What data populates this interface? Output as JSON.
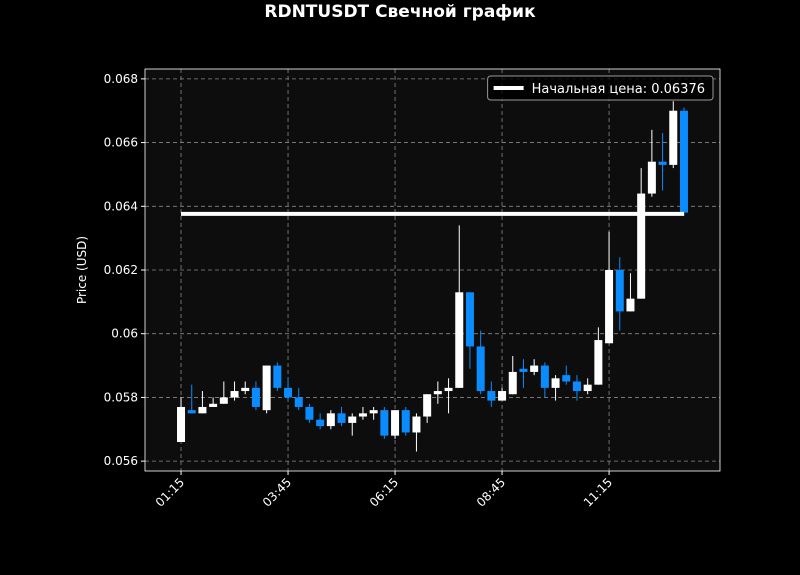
{
  "chart_data": {
    "type": "candlestick",
    "title": "RDNTUSDT Свечной график",
    "ylabel": "Price (USD)",
    "x": [
      75,
      90,
      105,
      120,
      135,
      150,
      165,
      180,
      195,
      210,
      225,
      240,
      255,
      270,
      285,
      300,
      315,
      330,
      345,
      360,
      375,
      390,
      405,
      420,
      435,
      450,
      465,
      480,
      495,
      510,
      525,
      540,
      555,
      570,
      585,
      600,
      615,
      630,
      645,
      660,
      675,
      690,
      705,
      720,
      735,
      750,
      765,
      780
    ],
    "open": [
      0.0566,
      0.0576,
      0.0575,
      0.0577,
      0.0578,
      0.058,
      0.0582,
      0.0583,
      0.0576,
      0.059,
      0.0583,
      0.058,
      0.0577,
      0.0573,
      0.0571,
      0.0575,
      0.0572,
      0.0574,
      0.0575,
      0.0576,
      0.0568,
      0.0576,
      0.0569,
      0.0574,
      0.0581,
      0.0582,
      0.0583,
      0.0613,
      0.0596,
      0.0582,
      0.0579,
      0.0581,
      0.0589,
      0.0588,
      0.059,
      0.0583,
      0.0587,
      0.0585,
      0.0582,
      0.0584,
      0.0597,
      0.062,
      0.0607,
      0.0611,
      0.0644,
      0.0654,
      0.0653,
      0.067
    ],
    "high": [
      0.058,
      0.0584,
      0.0582,
      0.058,
      0.0585,
      0.0585,
      0.0585,
      0.0585,
      0.059,
      0.0591,
      0.0586,
      0.0583,
      0.0578,
      0.0575,
      0.0576,
      0.0577,
      0.0575,
      0.0577,
      0.0577,
      0.0577,
      0.0576,
      0.0577,
      0.0575,
      0.0581,
      0.0585,
      0.0586,
      0.0634,
      0.0613,
      0.0601,
      0.0585,
      0.0583,
      0.0593,
      0.0592,
      0.0592,
      0.0591,
      0.0587,
      0.059,
      0.0587,
      0.0586,
      0.0602,
      0.0632,
      0.0624,
      0.0619,
      0.0652,
      0.0664,
      0.0663,
      0.0673,
      0.0671
    ],
    "low": [
      0.0566,
      0.0575,
      0.0575,
      0.0577,
      0.0578,
      0.0579,
      0.0581,
      0.0576,
      0.0575,
      0.0582,
      0.0579,
      0.0576,
      0.0572,
      0.057,
      0.057,
      0.0571,
      0.0568,
      0.0573,
      0.0573,
      0.0567,
      0.0567,
      0.0568,
      0.0563,
      0.0572,
      0.0578,
      0.0575,
      0.0583,
      0.0589,
      0.0581,
      0.0577,
      0.0579,
      0.0581,
      0.0583,
      0.0587,
      0.058,
      0.0579,
      0.0584,
      0.0579,
      0.0581,
      0.0584,
      0.0597,
      0.0601,
      0.0607,
      0.0611,
      0.0643,
      0.0645,
      0.0652,
      0.0637
    ],
    "close": [
      0.0577,
      0.0575,
      0.0577,
      0.0578,
      0.058,
      0.0582,
      0.0583,
      0.0577,
      0.059,
      0.0583,
      0.058,
      0.0577,
      0.0573,
      0.0571,
      0.0575,
      0.0572,
      0.0574,
      0.0575,
      0.0576,
      0.0568,
      0.0576,
      0.0569,
      0.0574,
      0.0581,
      0.0582,
      0.0583,
      0.0613,
      0.0596,
      0.0582,
      0.0579,
      0.0582,
      0.0588,
      0.0588,
      0.059,
      0.0583,
      0.0586,
      0.0585,
      0.0582,
      0.0584,
      0.0598,
      0.062,
      0.0607,
      0.0611,
      0.0644,
      0.0654,
      0.0653,
      0.067,
      0.0638
    ],
    "up_color": "#ffffff",
    "down_color": "#0a8cff",
    "reference_line": {
      "name": "Начальная цена: 0.06376",
      "value": 0.06376,
      "color": "#ffffff"
    },
    "xlim": [
      24.5,
      830.5
    ],
    "ylim": [
      0.05569,
      0.06831
    ],
    "xticks": [
      {
        "value": 75,
        "label": "01:15"
      },
      {
        "value": 225,
        "label": "03:45"
      },
      {
        "value": 375,
        "label": "06:15"
      },
      {
        "value": 525,
        "label": "08:45"
      },
      {
        "value": 675,
        "label": "11:15"
      }
    ],
    "yticks": [
      0.056,
      0.058,
      0.06,
      0.062,
      0.064,
      0.066,
      0.068
    ],
    "grid": true,
    "legend": "upper right"
  }
}
